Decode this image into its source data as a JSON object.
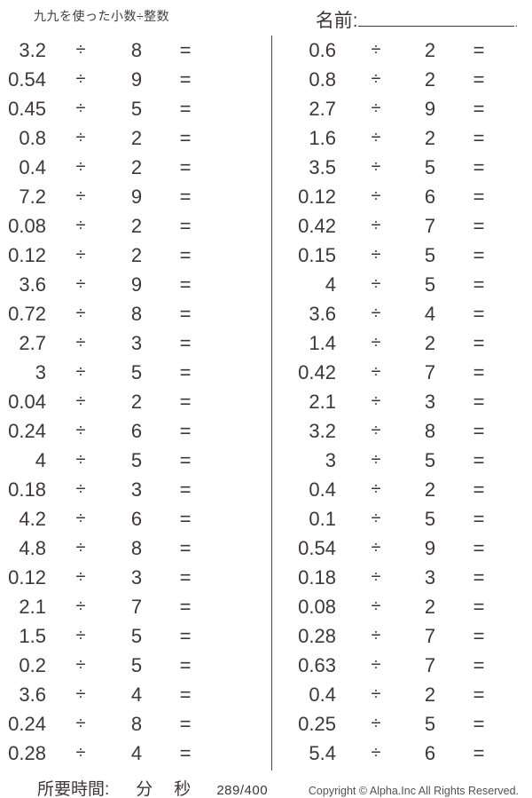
{
  "title": "九九を使った小数÷整数",
  "name_field": {
    "label": "名前:",
    "line_end": "."
  },
  "operator": "÷",
  "equals_sign": "=",
  "problems": {
    "left": [
      {
        "dividend": "3.2",
        "divisor": "8"
      },
      {
        "dividend": "0.54",
        "divisor": "9"
      },
      {
        "dividend": "0.45",
        "divisor": "5"
      },
      {
        "dividend": "0.8",
        "divisor": "2"
      },
      {
        "dividend": "0.4",
        "divisor": "2"
      },
      {
        "dividend": "7.2",
        "divisor": "9"
      },
      {
        "dividend": "0.08",
        "divisor": "2"
      },
      {
        "dividend": "0.12",
        "divisor": "2"
      },
      {
        "dividend": "3.6",
        "divisor": "9"
      },
      {
        "dividend": "0.72",
        "divisor": "8"
      },
      {
        "dividend": "2.7",
        "divisor": "3"
      },
      {
        "dividend": "3",
        "divisor": "5"
      },
      {
        "dividend": "0.04",
        "divisor": "2"
      },
      {
        "dividend": "0.24",
        "divisor": "6"
      },
      {
        "dividend": "4",
        "divisor": "5"
      },
      {
        "dividend": "0.18",
        "divisor": "3"
      },
      {
        "dividend": "4.2",
        "divisor": "6"
      },
      {
        "dividend": "4.8",
        "divisor": "8"
      },
      {
        "dividend": "0.12",
        "divisor": "3"
      },
      {
        "dividend": "2.1",
        "divisor": "7"
      },
      {
        "dividend": "1.5",
        "divisor": "5"
      },
      {
        "dividend": "0.2",
        "divisor": "5"
      },
      {
        "dividend": "3.6",
        "divisor": "4"
      },
      {
        "dividend": "0.24",
        "divisor": "8"
      },
      {
        "dividend": "0.28",
        "divisor": "4"
      }
    ],
    "right": [
      {
        "dividend": "0.6",
        "divisor": "2"
      },
      {
        "dividend": "0.8",
        "divisor": "2"
      },
      {
        "dividend": "2.7",
        "divisor": "9"
      },
      {
        "dividend": "1.6",
        "divisor": "2"
      },
      {
        "dividend": "3.5",
        "divisor": "5"
      },
      {
        "dividend": "0.12",
        "divisor": "6"
      },
      {
        "dividend": "0.42",
        "divisor": "7"
      },
      {
        "dividend": "0.15",
        "divisor": "5"
      },
      {
        "dividend": "4",
        "divisor": "5"
      },
      {
        "dividend": "3.6",
        "divisor": "4"
      },
      {
        "dividend": "1.4",
        "divisor": "2"
      },
      {
        "dividend": "0.42",
        "divisor": "7"
      },
      {
        "dividend": "2.1",
        "divisor": "3"
      },
      {
        "dividend": "3.2",
        "divisor": "8"
      },
      {
        "dividend": "3",
        "divisor": "5"
      },
      {
        "dividend": "0.4",
        "divisor": "2"
      },
      {
        "dividend": "0.1",
        "divisor": "5"
      },
      {
        "dividend": "0.54",
        "divisor": "9"
      },
      {
        "dividend": "0.18",
        "divisor": "3"
      },
      {
        "dividend": "0.08",
        "divisor": "2"
      },
      {
        "dividend": "0.28",
        "divisor": "7"
      },
      {
        "dividend": "0.63",
        "divisor": "7"
      },
      {
        "dividend": "0.4",
        "divisor": "2"
      },
      {
        "dividend": "0.25",
        "divisor": "5"
      },
      {
        "dividend": "5.4",
        "divisor": "6"
      }
    ]
  },
  "footer": {
    "time_label": "所要時間:",
    "minutes_unit": "分",
    "seconds_unit": "秒",
    "page_indicator": "289/400",
    "copyright": "Copyright © Alpha.Inc All Rights Reserved."
  },
  "colors": {
    "text": "#3f3639",
    "divider": "#4a4a4a",
    "muted": "#565052"
  }
}
